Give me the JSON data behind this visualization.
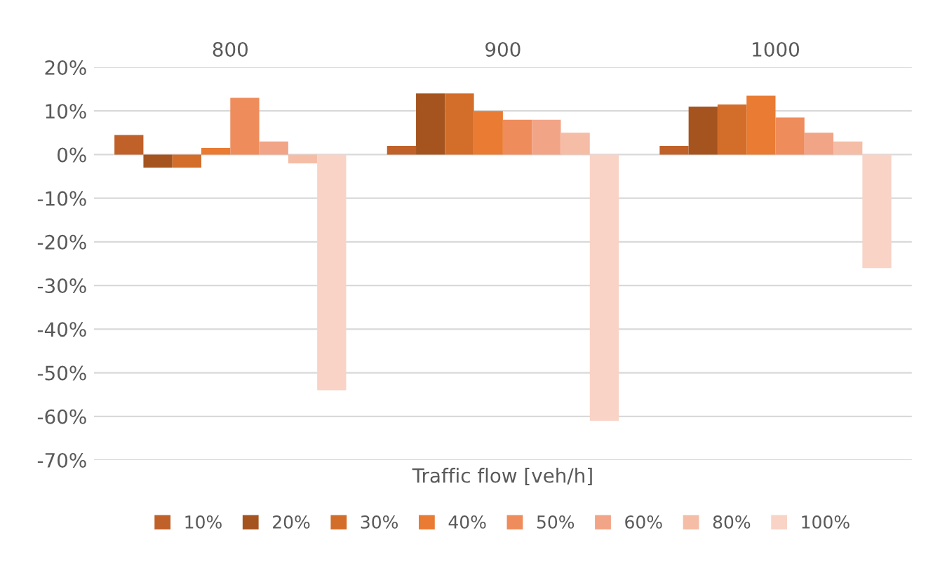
{
  "chart_data": {
    "type": "bar",
    "xlabel": "Traffic flow [veh/h]",
    "categories": [
      "800",
      "900",
      "1000"
    ],
    "series": [
      {
        "name": "10%",
        "color": "#c0612a",
        "values": [
          4.5,
          2,
          2
        ]
      },
      {
        "name": "20%",
        "color": "#a5541f",
        "values": [
          -3,
          14,
          11
        ]
      },
      {
        "name": "30%",
        "color": "#d36d2a",
        "values": [
          -3,
          14,
          11.5
        ]
      },
      {
        "name": "40%",
        "color": "#e97b32",
        "values": [
          1.5,
          10,
          13.5
        ]
      },
      {
        "name": "50%",
        "color": "#ef8c5c",
        "values": [
          13,
          8,
          8.5
        ]
      },
      {
        "name": "60%",
        "color": "#f2a487",
        "values": [
          3,
          8,
          5
        ]
      },
      {
        "name": "80%",
        "color": "#f5bda6",
        "values": [
          -2,
          5,
          3
        ]
      },
      {
        "name": "100%",
        "color": "#f8d3c6",
        "values": [
          -54,
          -61,
          -26
        ]
      }
    ],
    "ylim": [
      -70,
      20
    ],
    "yticks": [
      {
        "value": -70,
        "label": "-70%"
      },
      {
        "value": -60,
        "label": "-60%"
      },
      {
        "value": -50,
        "label": "-50%"
      },
      {
        "value": -40,
        "label": "-40%"
      },
      {
        "value": -30,
        "label": "-30%"
      },
      {
        "value": -20,
        "label": "-20%"
      },
      {
        "value": -10,
        "label": "-10%"
      },
      {
        "value": 0,
        "label": "0%"
      },
      {
        "value": 10,
        "label": "10%"
      },
      {
        "value": 20,
        "label": "20%"
      }
    ],
    "grid": "y",
    "legend": "bottom"
  }
}
